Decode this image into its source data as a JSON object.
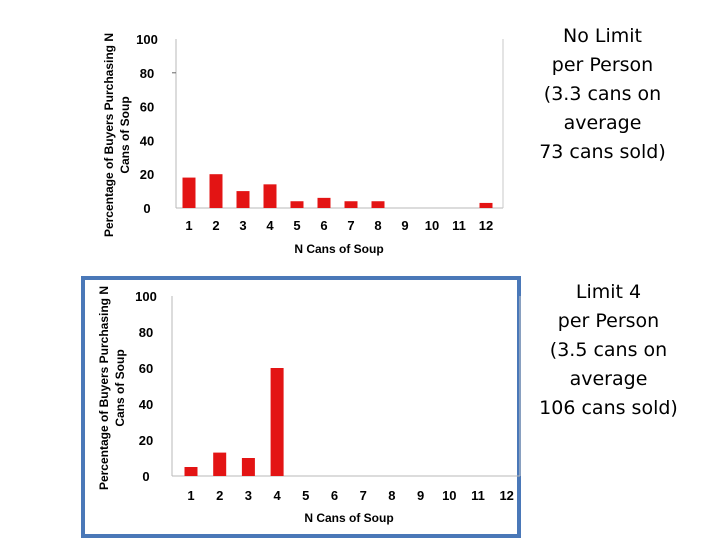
{
  "chart_data": [
    {
      "type": "bar",
      "categories": [
        "1",
        "2",
        "3",
        "4",
        "5",
        "6",
        "7",
        "8",
        "9",
        "10",
        "11",
        "12"
      ],
      "values": [
        18,
        20,
        10,
        14,
        4,
        6,
        4,
        4,
        0,
        0,
        0,
        3
      ],
      "ylim": [
        0,
        100
      ],
      "yticks": [
        "100",
        "80",
        "60",
        "40",
        "20",
        "0"
      ],
      "ylabel_lines": [
        "Percentage of Buyers Purchasing N",
        "Cans of Soup"
      ],
      "xlabel": "N Cans of Soup",
      "bar_color": "#e31414",
      "caption": [
        "No Limit",
        "per Person",
        "(3.3 cans on",
        "average",
        "73 cans sold)"
      ]
    },
    {
      "type": "bar",
      "categories": [
        "1",
        "2",
        "3",
        "4",
        "5",
        "6",
        "7",
        "8",
        "9",
        "10",
        "11",
        "12"
      ],
      "values": [
        5,
        13,
        10,
        60,
        0,
        0,
        0,
        0,
        0,
        0,
        0,
        0
      ],
      "ylim": [
        0,
        100
      ],
      "yticks": [
        "100",
        "80",
        "60",
        "40",
        "20",
        "0"
      ],
      "ylabel_lines": [
        "Percentage of Buyers Purchasing N",
        "Cans of Soup"
      ],
      "xlabel": "N Cans of Soup",
      "bar_color": "#e31414",
      "frame_color": "#4a78b8",
      "caption": [
        "Limit 4",
        "per Person",
        "(3.5 cans on",
        "average",
        "106 cans sold)"
      ]
    }
  ]
}
